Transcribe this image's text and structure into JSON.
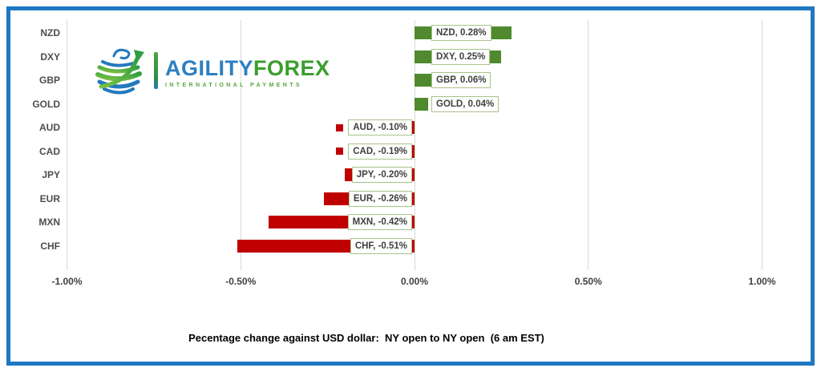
{
  "brand": {
    "agility": "AGILITY",
    "forex": "FOREX",
    "tagline": "INTERNATIONAL PAYMENTS"
  },
  "chart_data": {
    "type": "bar",
    "orientation": "horizontal",
    "categories": [
      "NZD",
      "DXY",
      "GBP",
      "GOLD",
      "AUD",
      "CAD",
      "JPY",
      "EUR",
      "MXN",
      "CHF"
    ],
    "values": [
      0.28,
      0.25,
      0.06,
      0.04,
      -0.1,
      -0.19,
      -0.2,
      -0.26,
      -0.42,
      -0.51
    ],
    "data_labels": [
      "NZD, 0.28%",
      "DXY, 0.25%",
      "GBP, 0.06%",
      "GOLD, 0.04%",
      "AUD, -0.10%",
      "CAD, -0.19%",
      "JPY, -0.20%",
      "EUR, -0.26%",
      "MXN, -0.42%",
      "CHF, -0.51%"
    ],
    "x_ticks": [
      "-1.00%",
      "-0.50%",
      "0.00%",
      "0.50%",
      "1.00%"
    ],
    "x_tick_values": [
      -1,
      -0.5,
      0,
      0.5,
      1
    ],
    "xlim": [
      -1,
      1
    ],
    "grid": true,
    "legend": "none",
    "title": "Pecentage change against USD dollar:  NY open to NY open  (6 am EST)",
    "colors": {
      "positive": "#4f8a2e",
      "negative": "#c00000",
      "label_box_border": "#a9c389",
      "gridline": "#d9d9d9",
      "frame_border": "#1e78c2",
      "text": "#3f3f3f"
    }
  }
}
